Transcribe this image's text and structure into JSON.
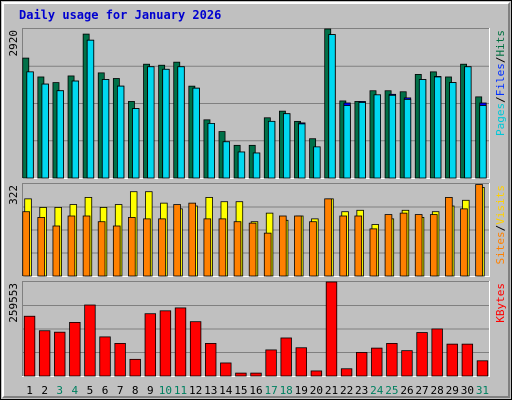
{
  "chart_data": {
    "type": "bar",
    "title": "Daily usage for January 2026",
    "categories": [
      "1",
      "2",
      "3",
      "4",
      "5",
      "6",
      "7",
      "8",
      "9",
      "10",
      "11",
      "12",
      "13",
      "14",
      "15",
      "16",
      "17",
      "18",
      "19",
      "20",
      "21",
      "22",
      "23",
      "24",
      "25",
      "26",
      "27",
      "28",
      "29",
      "30",
      "31"
    ],
    "weekend_days": [
      "3",
      "4",
      "10",
      "11",
      "17",
      "18",
      "24",
      "25",
      "31"
    ],
    "panels": [
      {
        "name": "pages-files-hits",
        "max_label": "2920",
        "ylim": [
          0,
          2920
        ],
        "axis_label": [
          {
            "text": "Pages",
            "color": "#00c8d8"
          },
          {
            "text": "Files",
            "color": "#0030ff"
          },
          {
            "text": "Hits",
            "color": "#007040"
          }
        ],
        "series": [
          {
            "name": "Hits",
            "color": "#007048",
            "values": [
              2350,
              1980,
              1870,
              2000,
              2820,
              2060,
              1950,
              1500,
              2230,
              2210,
              2270,
              1800,
              1140,
              910,
              640,
              640,
              1180,
              1310,
              1110,
              770,
              2960,
              1510,
              1500,
              1710,
              1710,
              1690,
              2030,
              2080,
              1980,
              2230,
              1590
            ]
          },
          {
            "name": "Files",
            "color": "#0000ff",
            "values": [
              2080,
              1840,
              1710,
              1900,
              2700,
              1930,
              1800,
              1360,
              2180,
              2130,
              2180,
              1760,
              1070,
              710,
              510,
              490,
              1110,
              1260,
              1080,
              610,
              2810,
              1470,
              1500,
              1630,
              1640,
              1570,
              1930,
              1990,
              1870,
              2180,
              1470
            ]
          },
          {
            "name": "Pages",
            "color": "#00d8f0",
            "values": [
              2080,
              1840,
              1710,
              1900,
              2700,
              1930,
              1800,
              1360,
              2180,
              2130,
              2180,
              1760,
              1070,
              710,
              510,
              490,
              1110,
              1260,
              1060,
              610,
              2810,
              1420,
              1480,
              1630,
              1620,
              1540,
              1930,
              1980,
              1870,
              2180,
              1420
            ]
          }
        ]
      },
      {
        "name": "visits-sites",
        "max_label": "322",
        "ylim": [
          0,
          322
        ],
        "axis_label": [
          {
            "text": "Sites",
            "color": "#ff8000"
          },
          {
            "text": "Visits",
            "color": "#ffd000"
          }
        ],
        "series": [
          {
            "name": "Visits",
            "color": "#ffff00",
            "values": [
              270,
              240,
              240,
              250,
              275,
              240,
              250,
              295,
              295,
              255,
              235,
              245,
              275,
              260,
              260,
              190,
              220,
              195,
              210,
              200,
              270,
              225,
              230,
              180,
              200,
              230,
              205,
              225,
              245,
              265,
              310
            ]
          },
          {
            "name": "Sites",
            "color": "#ff8000",
            "values": [
              225,
              205,
              175,
              210,
              210,
              190,
              175,
              205,
              200,
              200,
              250,
              255,
              200,
              200,
              190,
              185,
              150,
              210,
              210,
              190,
              270,
              210,
              210,
              165,
              215,
              220,
              215,
              215,
              275,
              235,
              320
            ]
          }
        ]
      },
      {
        "name": "kbytes",
        "max_label": "259553",
        "ylim": [
          0,
          259553
        ],
        "axis_label": [
          {
            "text": "KBytes",
            "color": "#ff0000"
          }
        ],
        "series": [
          {
            "name": "KBytes",
            "color": "#ff0000",
            "values": [
              165000,
              125000,
              121000,
              148000,
              196000,
              108000,
              90000,
              46000,
              172000,
              180000,
              188000,
              150000,
              90000,
              36000,
              8000,
              8000,
              72000,
              105000,
              78000,
              14000,
              262000,
              20000,
              65000,
              77000,
              90000,
              70000,
              120000,
              130000,
              88000,
              88000,
              42000
            ]
          }
        ]
      }
    ]
  }
}
